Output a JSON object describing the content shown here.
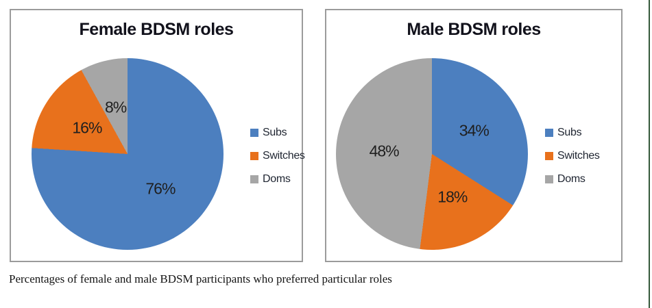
{
  "page": {
    "background": "#ffffff",
    "box_border_color": "#9b9b9b",
    "page_edge_line_color": "#35593a"
  },
  "caption": "Percentages of female and male BDSM participants who preferred particular roles",
  "palette": {
    "subs_blue": "#4c7fbf",
    "switches_orange": "#e8711c",
    "doms_gray": "#a6a6a6"
  },
  "chart_data": [
    {
      "type": "pie",
      "title": "Female BDSM roles",
      "categories": [
        "Subs",
        "Switches",
        "Doms"
      ],
      "values": [
        76,
        16,
        8
      ],
      "labels": [
        "76%",
        "16%",
        "8%"
      ],
      "unit": "%",
      "colors": [
        "#4c7fbf",
        "#e8711c",
        "#a6a6a6"
      ],
      "start_angle_deg": 0,
      "direction": "clockwise",
      "legend_position": "right"
    },
    {
      "type": "pie",
      "title": "Male BDSM roles",
      "categories": [
        "Subs",
        "Switches",
        "Doms"
      ],
      "values": [
        34,
        18,
        48
      ],
      "labels": [
        "34%",
        "18%",
        "48%"
      ],
      "unit": "%",
      "colors": [
        "#4c7fbf",
        "#e8711c",
        "#a6a6a6"
      ],
      "start_angle_deg": 0,
      "direction": "clockwise",
      "legend_position": "right"
    }
  ]
}
